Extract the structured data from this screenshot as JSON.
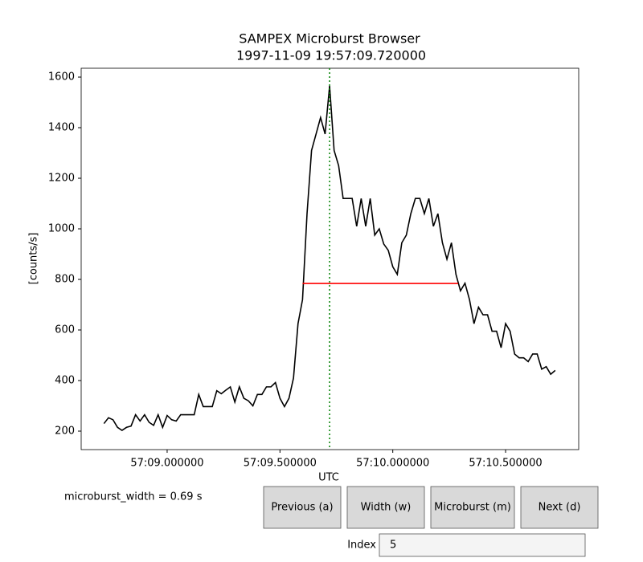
{
  "chart_data": {
    "type": "line",
    "title": "SAMPEX Microburst Browser",
    "subtitle": "1997-11-09 19:57:09.720000",
    "xlabel": "UTC",
    "ylabel": "[counts/s]",
    "x": [
      8.72,
      8.74,
      8.76,
      8.78,
      8.8,
      8.82,
      8.84,
      8.86,
      8.88,
      8.9,
      8.92,
      8.94,
      8.96,
      8.98,
      9.0,
      9.02,
      9.04,
      9.06,
      9.08,
      9.1,
      9.12,
      9.14,
      9.16,
      9.18,
      9.2,
      9.22,
      9.24,
      9.26,
      9.28,
      9.3,
      9.32,
      9.34,
      9.36,
      9.38,
      9.4,
      9.42,
      9.44,
      9.46,
      9.48,
      9.5,
      9.52,
      9.54,
      9.56,
      9.58,
      9.6,
      9.62,
      9.64,
      9.66,
      9.68,
      9.7,
      9.72,
      9.74,
      9.76,
      9.78,
      9.8,
      9.82,
      9.84,
      9.86,
      9.88,
      9.9,
      9.92,
      9.94,
      9.96,
      9.98,
      10.0,
      10.02,
      10.04,
      10.06,
      10.08,
      10.1,
      10.12,
      10.14,
      10.16,
      10.18,
      10.2,
      10.22,
      10.24,
      10.26,
      10.28,
      10.3,
      10.32,
      10.34,
      10.36,
      10.38,
      10.4,
      10.42,
      10.44,
      10.46,
      10.48,
      10.5,
      10.52,
      10.54,
      10.56,
      10.58,
      10.6,
      10.62,
      10.64,
      10.66,
      10.68,
      10.7,
      10.72
    ],
    "series": [
      {
        "color": "#000000",
        "values": [
          230,
          253,
          245,
          215,
          203,
          215,
          220,
          265,
          240,
          265,
          235,
          223,
          265,
          215,
          262,
          245,
          240,
          265,
          265,
          265,
          265,
          345,
          297,
          297,
          297,
          360,
          348,
          362,
          375,
          315,
          375,
          330,
          320,
          300,
          345,
          345,
          375,
          375,
          392,
          330,
          297,
          330,
          410,
          625,
          720,
          1060,
          1310,
          1375,
          1440,
          1375,
          1565,
          1310,
          1250,
          1120,
          1120,
          1120,
          1010,
          1120,
          1010,
          1120,
          975,
          1000,
          940,
          915,
          850,
          820,
          945,
          975,
          1060,
          1120,
          1120,
          1060,
          1120,
          1010,
          1060,
          945,
          880,
          945,
          820,
          755,
          785,
          720,
          625,
          690,
          660,
          660,
          595,
          595,
          530,
          625,
          595,
          505,
          490,
          490,
          475,
          505,
          505,
          445,
          455,
          425,
          440
        ]
      }
    ],
    "xlim": [
      8.619,
      10.824
    ],
    "ylim": [
      127,
      1635
    ],
    "xticks": [
      {
        "value": 9.0,
        "label": "57:09.000000"
      },
      {
        "value": 9.5,
        "label": "57:09.500000"
      },
      {
        "value": 10.0,
        "label": "57:10.000000"
      },
      {
        "value": 10.5,
        "label": "57:10.500000"
      }
    ],
    "yticks": [
      200,
      400,
      600,
      800,
      1000,
      1200,
      1400,
      1600
    ],
    "vline": {
      "x": 9.72,
      "color": "#008000"
    },
    "hline": {
      "y": 784,
      "xmin": 9.6,
      "xmax": 10.29,
      "color": "#ff0000"
    }
  },
  "controls": {
    "width_text": "microburst_width = 0.69 s",
    "buttons": [
      "Previous (a)",
      "Width (w)",
      "Microburst (m)",
      "Next (d)"
    ],
    "index_label": "Index",
    "index_value": "5"
  }
}
